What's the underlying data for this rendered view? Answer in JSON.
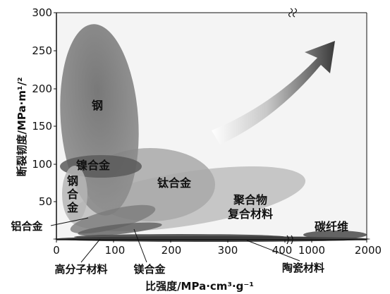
{
  "chart_data": {
    "type": "scatter",
    "title": "",
    "xlabel": "比强度/MPa·cm³·g⁻¹",
    "ylabel": "断裂韧度/MPa·m¹/²",
    "xaxis": {
      "segments": [
        {
          "range": [
            0,
            400
          ],
          "ticks": [
            "0",
            "100",
            "200",
            "300",
            "400"
          ]
        },
        {
          "range": [
            1000,
            2000
          ],
          "ticks": [
            "1000",
            "2000"
          ]
        }
      ],
      "break": "between 400 and 1000"
    },
    "yaxis": {
      "range": [
        0,
        300
      ],
      "ticks": [
        "50",
        "100",
        "150",
        "200",
        "250",
        "300"
      ],
      "break": "near top"
    },
    "grid": false,
    "legend": "none",
    "arrow": "toward upper right",
    "regions": [
      {
        "label": "钢",
        "x": [
          25,
          140
        ],
        "y": [
          30,
          280
        ]
      },
      {
        "label": "镍合金",
        "x": [
          25,
          135
        ],
        "y": [
          95,
          110
        ]
      },
      {
        "label": "钢合金",
        "x": [
          20,
          80
        ],
        "y": [
          20,
          100
        ]
      },
      {
        "label": "钛合金",
        "x": [
          55,
          290
        ],
        "y": [
          25,
          140
        ]
      },
      {
        "label": "聚合物复合材料",
        "x": [
          85,
          400
        ],
        "y": [
          5,
          95
        ]
      },
      {
        "label": "铝合金",
        "x": [
          50,
          145
        ],
        "y": [
          10,
          40
        ]
      },
      {
        "label": "镁合金",
        "x": [
          60,
          230
        ],
        "y": [
          5,
          25
        ]
      },
      {
        "label": "高分子材料",
        "x": [
          80,
          400
        ],
        "y": [
          1,
          6
        ]
      },
      {
        "label": "陶瓷材料",
        "x": [
          30,
          1700
        ],
        "y": [
          0,
          3
        ]
      },
      {
        "label": "碳纤维",
        "x": [
          1200,
          2000
        ],
        "y": [
          1,
          5
        ]
      }
    ],
    "callouts": [
      "铝合金",
      "高分子材料",
      "镁合金",
      "陶瓷材料"
    ]
  }
}
